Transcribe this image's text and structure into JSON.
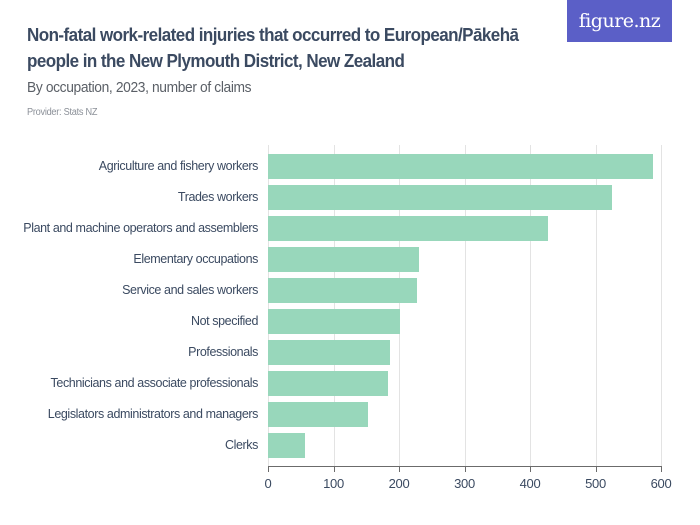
{
  "header": {
    "title": "Non-fatal work-related injuries that occurred to European/Pākehā people in the New Plymouth District, New Zealand",
    "subtitle": "By occupation, 2023, number of claims",
    "provider": "Provider: Stats NZ",
    "logo": "figure.nz"
  },
  "colors": {
    "bar": "#98d7bb",
    "logo_bg": "#5b5fc7",
    "title": "#3b4a61"
  },
  "chart_data": {
    "type": "bar",
    "orientation": "horizontal",
    "title": "Non-fatal work-related injuries that occurred to European/Pākehā people in the New Plymouth District, New Zealand",
    "subtitle": "By occupation, 2023, number of claims",
    "xlabel": "",
    "ylabel": "",
    "xlim": [
      0,
      600
    ],
    "grid": true,
    "legend": "none",
    "categories": [
      "Agriculture and fishery workers",
      "Trades workers",
      "Plant and machine operators and assemblers",
      "Elementary occupations",
      "Service and sales workers",
      "Not specified",
      "Professionals",
      "Technicians and associate professionals",
      "Legislators administrators and managers",
      "Clerks"
    ],
    "values": [
      588,
      525,
      428,
      231,
      228,
      201,
      186,
      183,
      153,
      57
    ],
    "ticks": [
      "0",
      "100",
      "200",
      "300",
      "400",
      "500",
      "600"
    ]
  }
}
